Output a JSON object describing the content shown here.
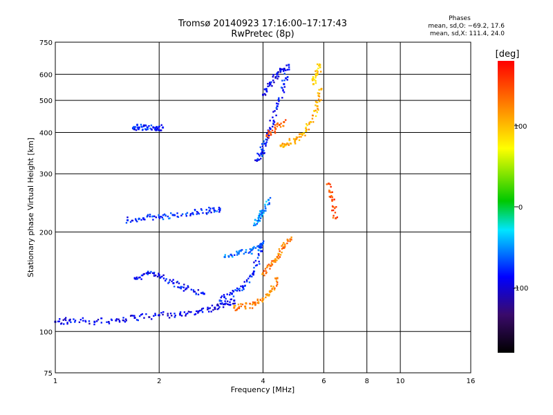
{
  "title": {
    "line1": "Tromsø 20140923 17:16:00–17:17:43",
    "line2": "RwPretec (8p)"
  },
  "phases": {
    "title": "Phases",
    "o_stats": "mean, sd,O: −69.2, 17.6",
    "x_stats": "mean, sd,X: 111.4, 24.0"
  },
  "chart_data": {
    "type": "scatter",
    "xlabel": "Frequency [MHz]",
    "ylabel": "Stationary phase Virtual Height [km]",
    "x_scale": "log",
    "y_scale": "log",
    "xlim": [
      1,
      16
    ],
    "ylim": [
      75,
      750
    ],
    "x_ticks": [
      1,
      2,
      4,
      6,
      8,
      10,
      16
    ],
    "y_ticks": [
      75,
      100,
      200,
      300,
      400,
      500,
      600,
      750
    ],
    "grid": true,
    "colorbar": {
      "label": "[deg]",
      "range": [
        -180,
        180
      ],
      "ticks": [
        100,
        0,
        -100
      ],
      "colors": [
        "#000000",
        "#3a0a6a",
        "#0000ff",
        "#00e5ff",
        "#00c800",
        "#ffff00",
        "#ff7f00",
        "#ff0000"
      ]
    },
    "series": [
      {
        "segments": [
          {
            "f": [
              1.0,
              1.1,
              1.3,
              1.5,
              1.7,
              2.0,
              2.3,
              2.6,
              2.9,
              3.1,
              3.3
            ],
            "h": [
              107,
              108,
              107,
              108,
              110,
              112,
              113,
              115,
              118,
              121,
              124
            ],
            "phase": -95
          },
          {
            "f": [
              1.62,
              1.8,
              2.0,
              2.2,
              2.5,
              2.8,
              3.0
            ],
            "h": [
              217,
              220,
              222,
              225,
              228,
              232,
              235
            ],
            "phase": -75
          },
          {
            "f": [
              1.7,
              1.85,
              2.0,
              2.2,
              2.4,
              2.7
            ],
            "h": [
              145,
              150,
              148,
              140,
              135,
              130
            ],
            "phase": -85
          },
          {
            "f": [
              1.68,
              1.75,
              1.85,
              1.95,
              2.05
            ],
            "h": [
              412,
              414,
              414,
              413,
              414
            ],
            "phase": -80
          },
          {
            "f": [
              3.0,
              3.25,
              3.5,
              3.75,
              3.95
            ],
            "h": [
              124,
              130,
              136,
              150,
              175
            ],
            "phase": -80
          },
          {
            "f": [
              3.1,
              3.4,
              3.7,
              3.9,
              4.0
            ],
            "h": [
              168,
              172,
              176,
              180,
              185
            ],
            "phase": -60
          },
          {
            "f": [
              3.85,
              3.95,
              4.05,
              4.2,
              4.4,
              4.6,
              4.75
            ],
            "h": [
              330,
              345,
              370,
              410,
              480,
              560,
              640
            ],
            "phase": -80
          },
          {
            "f": [
              4.0,
              4.2,
              4.4,
              4.6
            ],
            "h": [
              520,
              560,
              600,
              620
            ],
            "phase": -95
          },
          {
            "f": [
              3.8,
              3.9,
              4.0,
              4.15
            ],
            "h": [
              210,
              222,
              232,
              250
            ],
            "phase": -50
          },
          {
            "f": [
              3.3,
              3.55,
              3.8,
              4.0,
              4.2,
              4.4
            ],
            "h": [
              118,
              119,
              121,
              125,
              132,
              145
            ],
            "phase": 125
          },
          {
            "f": [
              4.0,
              4.2,
              4.4,
              4.6,
              4.8
            ],
            "h": [
              150,
              158,
              168,
              180,
              190
            ],
            "phase": 130
          },
          {
            "f": [
              4.5,
              4.7,
              4.95,
              5.2,
              5.5,
              5.75,
              5.9
            ],
            "h": [
              365,
              370,
              380,
              395,
              430,
              480,
              540
            ],
            "phase": 105
          },
          {
            "f": [
              5.6,
              5.75,
              5.85
            ],
            "h": [
              560,
              600,
              640
            ],
            "phase": 95
          },
          {
            "f": [
              6.2,
              6.35,
              6.5
            ],
            "h": [
              280,
              250,
              220
            ],
            "phase": 150
          },
          {
            "f": [
              4.1,
              4.35,
              4.6
            ],
            "h": [
              390,
              410,
              430
            ],
            "phase": 140
          }
        ]
      }
    ]
  }
}
